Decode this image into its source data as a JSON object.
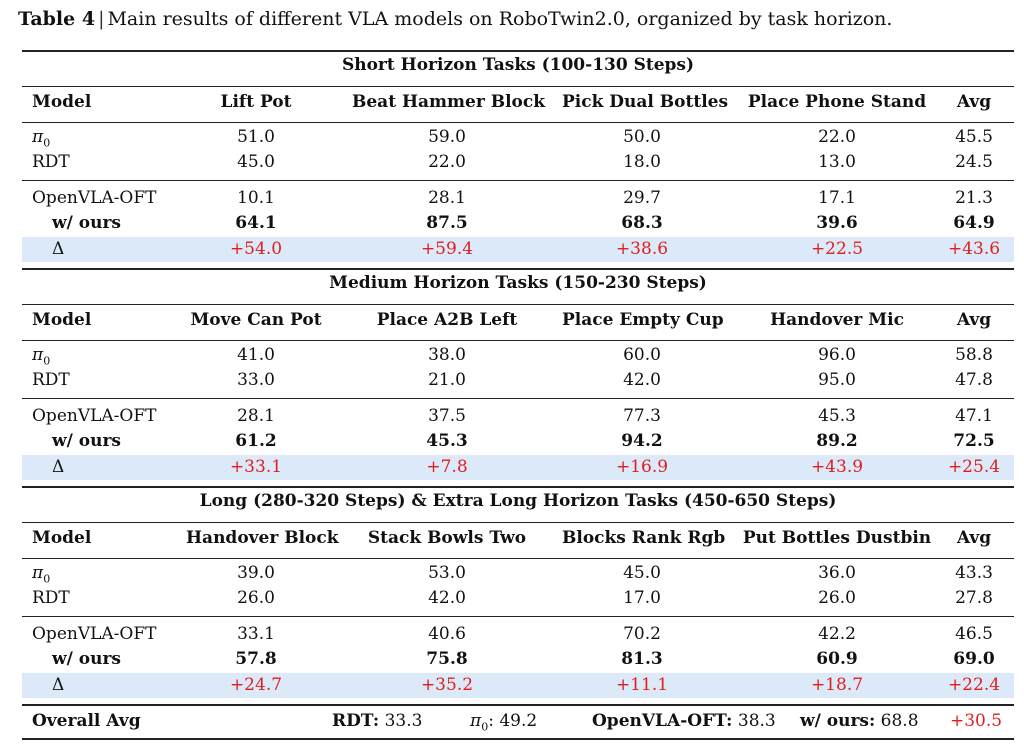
{
  "caption": {
    "label": "Table 4",
    "separator": "|",
    "text": "Main results of different VLA models on RoboTwin2.0, organized by task horizon."
  },
  "sections": [
    {
      "title": "Short Horizon Tasks (100-130 Steps)",
      "header": [
        "Model",
        "Lift Pot",
        "Beat Hammer Block",
        "Pick Dual Bottles",
        "Place Phone Stand",
        "Avg"
      ],
      "pi0": [
        "51.0",
        "59.0",
        "50.0",
        "22.0",
        "45.5"
      ],
      "rdt": [
        "45.0",
        "22.0",
        "18.0",
        "13.0",
        "24.5"
      ],
      "openvla": [
        "10.1",
        "28.1",
        "29.7",
        "17.1",
        "21.3"
      ],
      "ours": [
        "64.1",
        "87.5",
        "68.3",
        "39.6",
        "64.9"
      ],
      "delta": [
        "+54.0",
        "+59.4",
        "+38.6",
        "+22.5",
        "+43.6"
      ]
    },
    {
      "title": "Medium Horizon Tasks (150-230 Steps)",
      "header": [
        "Model",
        "Move Can Pot",
        "Place A2B Left",
        "Place Empty Cup",
        "Handover Mic",
        "Avg"
      ],
      "pi0": [
        "41.0",
        "38.0",
        "60.0",
        "96.0",
        "58.8"
      ],
      "rdt": [
        "33.0",
        "21.0",
        "42.0",
        "95.0",
        "47.8"
      ],
      "openvla": [
        "28.1",
        "37.5",
        "77.3",
        "45.3",
        "47.1"
      ],
      "ours": [
        "61.2",
        "45.3",
        "94.2",
        "89.2",
        "72.5"
      ],
      "delta": [
        "+33.1",
        "+7.8",
        "+16.9",
        "+43.9",
        "+25.4"
      ]
    },
    {
      "title": "Long (280-320 Steps) & Extra Long Horizon Tasks (450-650 Steps)",
      "header": [
        "Model",
        "Handover Block",
        "Stack Bowls Two",
        "Blocks Rank Rgb",
        "Put Bottles Dustbin",
        "Avg"
      ],
      "pi0": [
        "39.0",
        "53.0",
        "45.0",
        "36.0",
        "43.3"
      ],
      "rdt": [
        "26.0",
        "42.0",
        "17.0",
        "26.0",
        "27.8"
      ],
      "openvla": [
        "33.1",
        "40.6",
        "70.2",
        "42.2",
        "46.5"
      ],
      "ours": [
        "57.8",
        "75.8",
        "81.3",
        "60.9",
        "69.0"
      ],
      "delta": [
        "+24.7",
        "+35.2",
        "+11.1",
        "+18.7",
        "+22.4"
      ]
    }
  ],
  "row_labels": {
    "pi_symbol": "π",
    "pi_sub": "0",
    "rdt": "RDT",
    "openvla": "OpenVLA-OFT",
    "ours": "w/ ours",
    "delta": "Δ"
  },
  "overall": {
    "label": "Overall Avg",
    "rdt_label": "RDT:",
    "rdt_value": "33.3",
    "pi_label_suffix": ":",
    "pi_value": "49.2",
    "openvla_label": "OpenVLA-OFT:",
    "openvla_value": "38.3",
    "ours_label": "w/ ours:",
    "ours_value": "68.8",
    "delta_value": "+30.5"
  },
  "colors": {
    "delta_text": "#e01e1e",
    "delta_background": "#dbe9f8"
  }
}
